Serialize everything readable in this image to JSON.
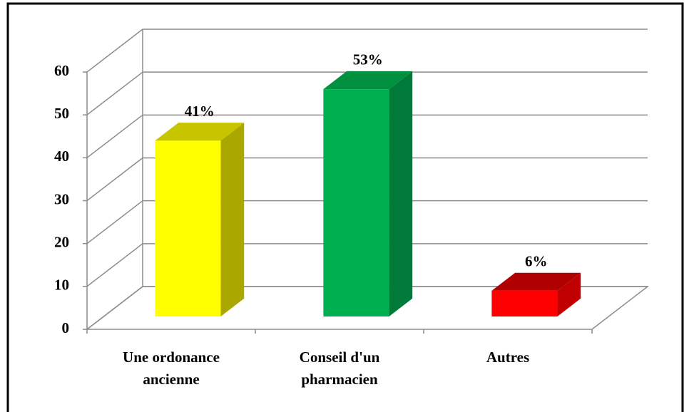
{
  "chart_data": {
    "type": "bar3d",
    "categories": [
      [
        "Une ordonance",
        "ancienne"
      ],
      [
        "Conseil d'un",
        "pharmacien"
      ],
      [
        "Autres"
      ]
    ],
    "values": [
      41,
      53,
      6
    ],
    "value_labels": [
      "41%",
      "53%",
      "6%"
    ],
    "colors": [
      {
        "front": "#ffff00",
        "side": "#aaa800",
        "top": "#c8c400"
      },
      {
        "front": "#00b050",
        "side": "#007a38",
        "top": "#009040"
      },
      {
        "front": "#ff0000",
        "side": "#c00000",
        "top": "#b00000"
      }
    ],
    "ylim": [
      0,
      60
    ],
    "yticks": [
      0,
      10,
      20,
      30,
      40,
      50,
      60
    ],
    "grid": true
  }
}
